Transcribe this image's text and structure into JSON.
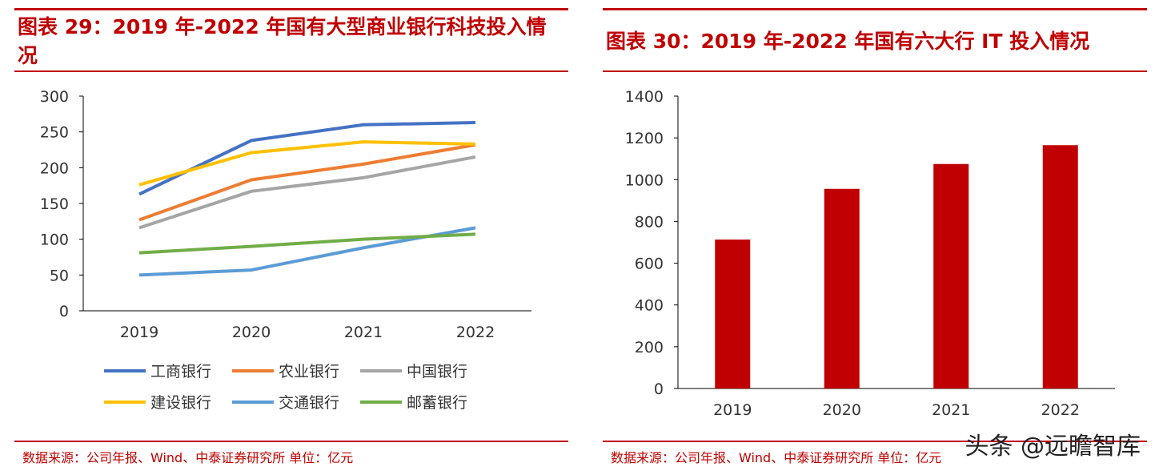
{
  "left_panel": {
    "title": "图表 29：2019 年-2022 年国有大型商业银行科技投入情况",
    "source": "数据来源：公司年报、Wind、中泰证券研究所 单位：亿元"
  },
  "right_panel": {
    "title": "图表 30：2019 年-2022 年国有六大行 IT 投入情况",
    "source": "数据来源：公司年报、Wind、中泰证券研究所 单位：亿元"
  },
  "watermark": "头条 @远瞻智库",
  "colors": {
    "brand_red": "#c00000"
  },
  "chart_data": [
    {
      "type": "line",
      "title": "图表 29：2019 年-2022 年国有大型商业银行科技投入情况",
      "categories": [
        "2019",
        "2020",
        "2021",
        "2022"
      ],
      "ylim": [
        0,
        300
      ],
      "yticks": [
        0,
        50,
        100,
        150,
        200,
        250,
        300
      ],
      "grid": false,
      "legend_position": "bottom",
      "series": [
        {
          "name": "工商银行",
          "color": "#4472c4",
          "values": [
            163,
            238,
            260,
            263
          ]
        },
        {
          "name": "农业银行",
          "color": "#ed7d31",
          "values": [
            127,
            183,
            205,
            232
          ]
        },
        {
          "name": "中国银行",
          "color": "#a5a5a5",
          "values": [
            116,
            167,
            186,
            215
          ]
        },
        {
          "name": "建设银行",
          "color": "#ffc000",
          "values": [
            176,
            221,
            236,
            233
          ]
        },
        {
          "name": "交通银行",
          "color": "#5b9bd5",
          "values": [
            50,
            57,
            88,
            116
          ]
        },
        {
          "name": "邮蓄银行",
          "color": "#70ad47",
          "values": [
            81,
            90,
            100,
            107
          ]
        }
      ]
    },
    {
      "type": "bar",
      "title": "图表 30：2019 年-2022 年国有六大行 IT 投入情况",
      "categories": [
        "2019",
        "2020",
        "2021",
        "2022"
      ],
      "values": [
        713,
        956,
        1075,
        1165
      ],
      "color": "#c00000",
      "ylim": [
        0,
        1400
      ],
      "yticks": [
        0,
        200,
        400,
        600,
        800,
        1000,
        1200,
        1400
      ],
      "grid": false
    }
  ]
}
